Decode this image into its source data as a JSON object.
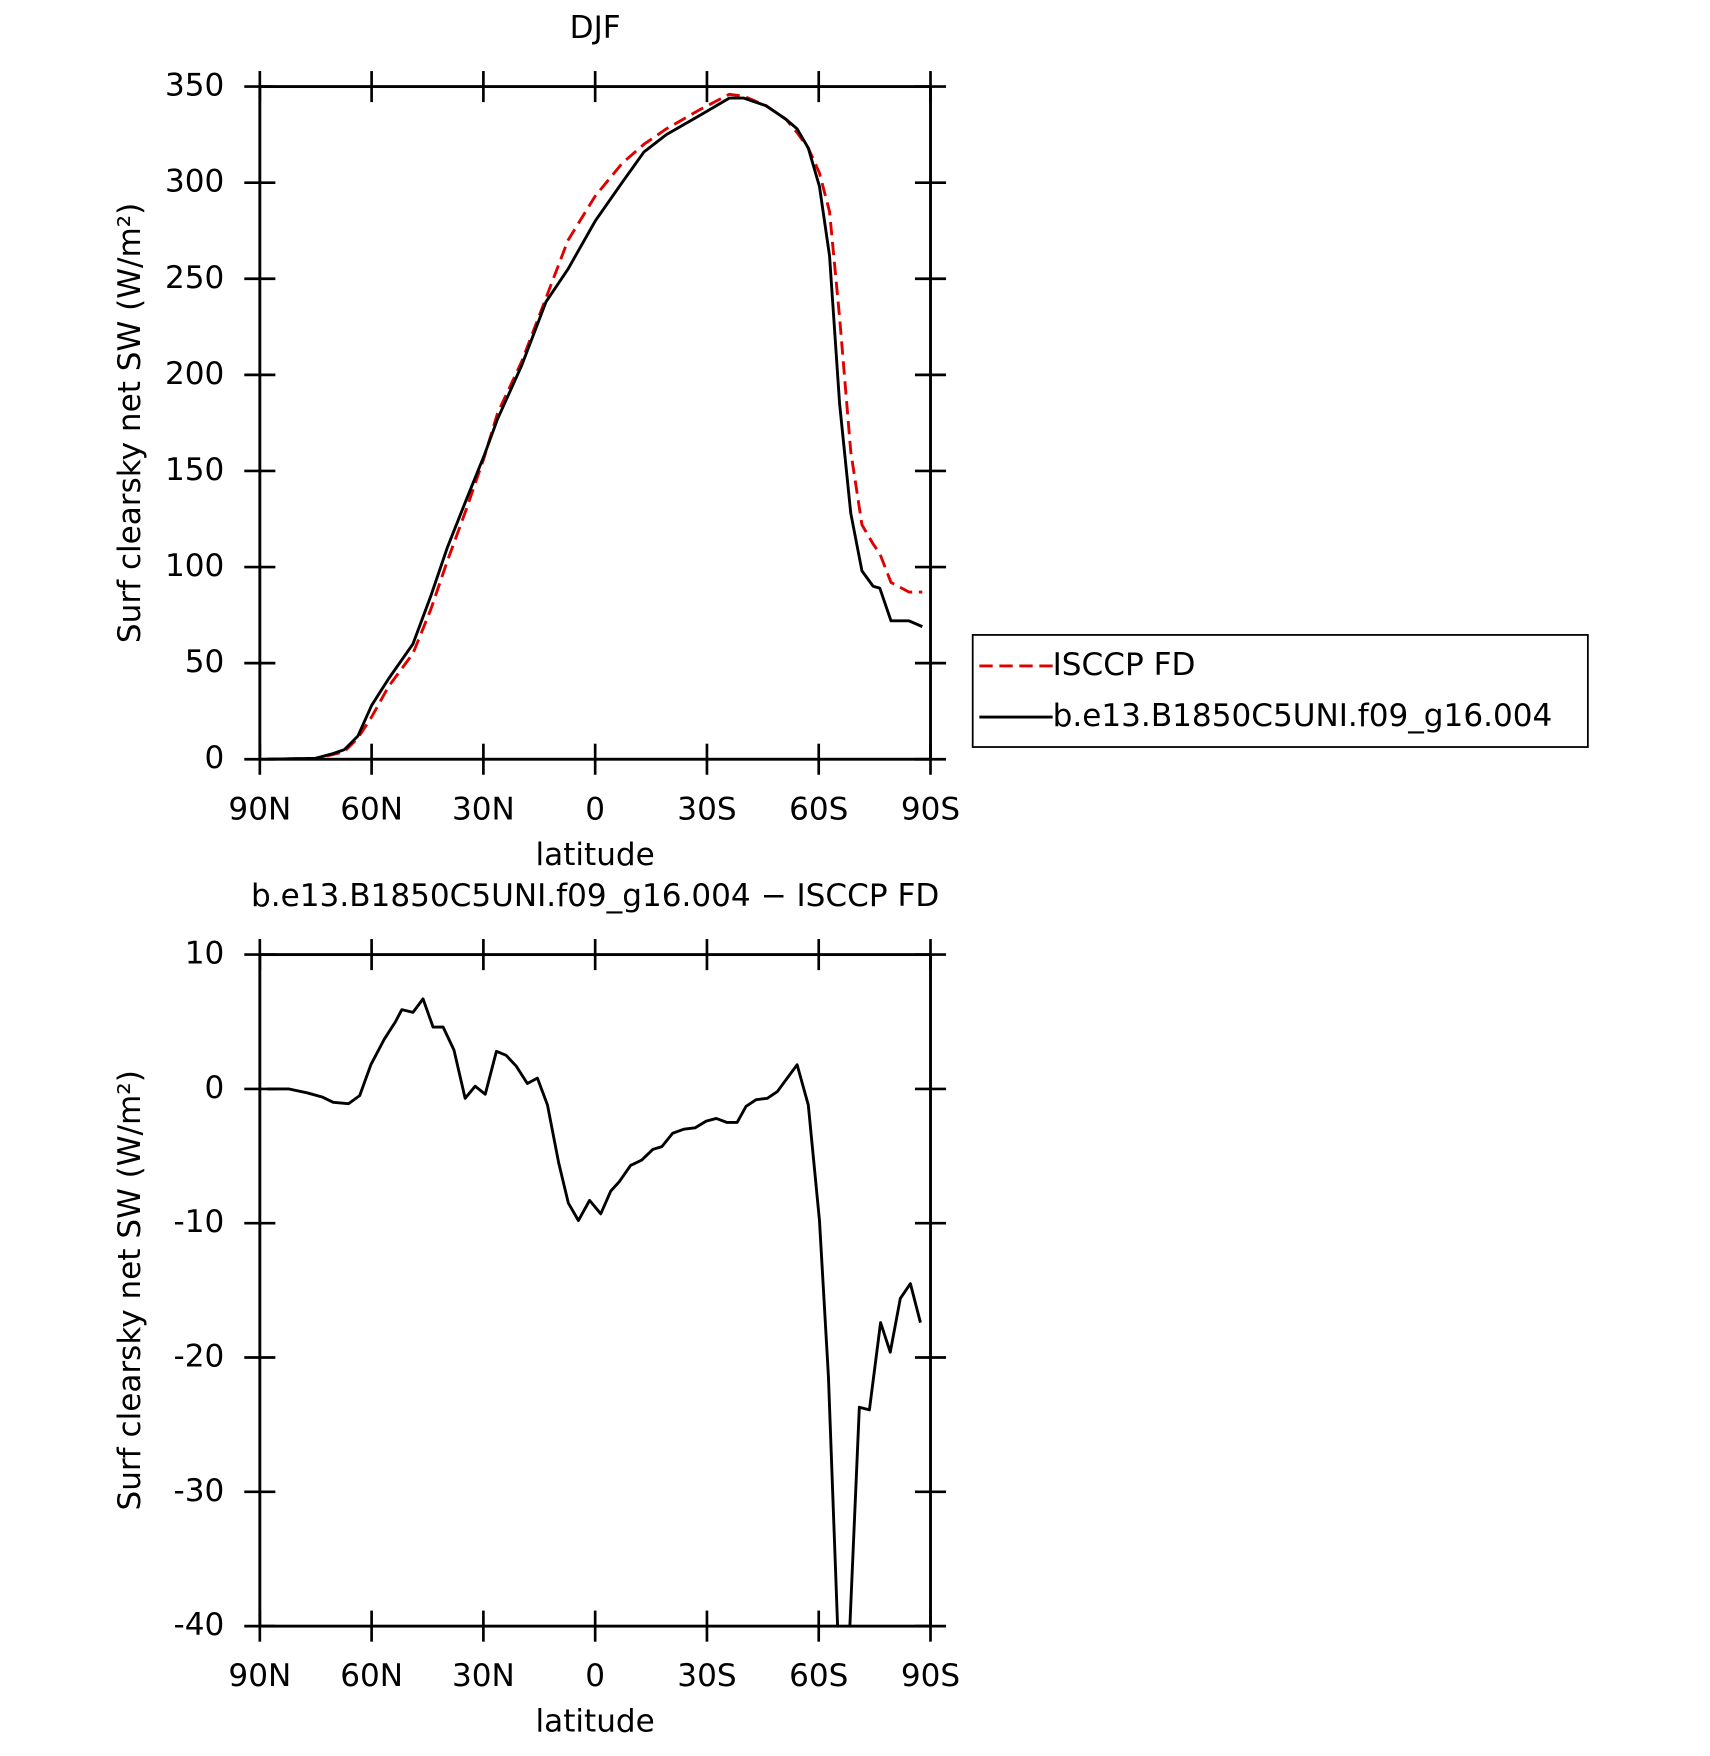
{
  "chart_data": [
    {
      "type": "line",
      "title": "DJF",
      "xlabel": "latitude",
      "ylabel": "Surf clearsky net SW (W/m²)",
      "x": [
        88,
        75,
        70.3,
        67.3,
        63.7,
        60,
        55.4,
        48.9,
        44.1,
        39.7,
        34.6,
        29.8,
        26.2,
        19.7,
        13.2,
        7.3,
        0,
        -7.2,
        -13.1,
        -19.1,
        -28.1,
        -36,
        -39.9,
        -45.9,
        -51.2,
        -54.2,
        -57.2,
        -60.2,
        -62.9,
        -65.6,
        -68.6,
        -71.6,
        -74.6,
        -76.4,
        -79.4,
        -84.2,
        -87.8
      ],
      "series": [
        {
          "name": "ISCCP FD",
          "color": "#e00000",
          "style": "dashed",
          "values": [
            0,
            0.5,
            2.5,
            4,
            11,
            22,
            38,
            55,
            78,
            103,
            130,
            157,
            180,
            207,
            240,
            270,
            293,
            310,
            320,
            328,
            338,
            346,
            345,
            340,
            333,
            326,
            318,
            305,
            285,
            230,
            160,
            122,
            112,
            107,
            92,
            87,
            87
          ]
        },
        {
          "name": "b.e13.B1850C5UNI.f09_g16.004",
          "color": "#000000",
          "style": "solid",
          "values": [
            0,
            0.5,
            3,
            5,
            12,
            28,
            42,
            60,
            85,
            110,
            135,
            158,
            177,
            205,
            238,
            255,
            280,
            300,
            316,
            325,
            335,
            344,
            344,
            340,
            333,
            328,
            318,
            298,
            262,
            185,
            128,
            98,
            90,
            89,
            72,
            72,
            69
          ]
        }
      ],
      "xlim": [
        90,
        -90
      ],
      "xticks": [
        {
          "value": 90,
          "label": "90N"
        },
        {
          "value": 60,
          "label": "60N"
        },
        {
          "value": 30,
          "label": "30N"
        },
        0,
        {
          "value": -30,
          "label": "30S"
        },
        {
          "value": -60,
          "label": "60S"
        },
        {
          "value": -90,
          "label": "90S"
        }
      ],
      "ylim": [
        0,
        350
      ],
      "yticks": [
        0,
        50,
        100,
        150,
        200,
        250,
        300,
        350
      ],
      "legend": "right"
    },
    {
      "type": "line",
      "title": "b.e13.B1850C5UNI.f09_g16.004 − ISCCP FD",
      "xlabel": "latitude",
      "ylabel": "Surf clearsky net SW (W/m²)",
      "x": [
        88,
        82.3,
        77.2,
        73.3,
        70.3,
        66.2,
        63.2,
        60.2,
        56.6,
        53.6,
        51.9,
        48.9,
        46.2,
        43.5,
        40.8,
        37.9,
        34.9,
        32.2,
        29.5,
        26.5,
        23.9,
        21.2,
        18.2,
        15.5,
        12.8,
        9.8,
        7.2,
        4.5,
        1.5,
        -1.5,
        -4.2,
        -6.5,
        -9.5,
        -12.5,
        -15.5,
        -17.9,
        -20.8,
        -23.8,
        -26.8,
        -29.8,
        -32.5,
        -35.4,
        -38.1,
        -40.5,
        -43.2,
        -46.2,
        -48.9,
        -51.8,
        -54.2,
        -57.2,
        -60.2,
        -62.6,
        -65.2,
        -68.2,
        -70.9,
        -73.6,
        -76.6,
        -79.2,
        -81.9,
        -84.6,
        -87.3
      ],
      "series": [
        {
          "color": "#000000",
          "style": "solid",
          "values": [
            0,
            0,
            -0.3,
            -0.6,
            -1,
            -1.1,
            -0.5,
            1.8,
            3.7,
            5,
            5.9,
            5.7,
            6.7,
            4.6,
            4.6,
            2.9,
            -0.7,
            0.2,
            -0.4,
            2.8,
            2.5,
            1.7,
            0.4,
            0.8,
            -1.2,
            -5.5,
            -8.5,
            -9.8,
            -8.3,
            -9.3,
            -7.6,
            -6.9,
            -5.7,
            -5.3,
            -4.5,
            -4.3,
            -3.3,
            -3,
            -2.9,
            -2.4,
            -2.2,
            -2.5,
            -2.5,
            -1.3,
            -0.8,
            -0.7,
            -0.2,
            0.9,
            1.8,
            -1.2,
            -9.8,
            -21.4,
            -41,
            -41,
            -23.7,
            -23.9,
            -17.4,
            -19.6,
            -15.6,
            -14.5,
            -17.4
          ]
        }
      ],
      "xlim": [
        90,
        -90
      ],
      "xticks": [
        {
          "value": 90,
          "label": "90N"
        },
        {
          "value": 60,
          "label": "60N"
        },
        {
          "value": 30,
          "label": "30N"
        },
        0,
        {
          "value": -30,
          "label": "30S"
        },
        {
          "value": -60,
          "label": "60S"
        },
        {
          "value": -90,
          "label": "90S"
        }
      ],
      "ylim": [
        -40,
        10
      ],
      "yticks": [
        -40,
        -30,
        -20,
        -10,
        0,
        10
      ]
    }
  ]
}
